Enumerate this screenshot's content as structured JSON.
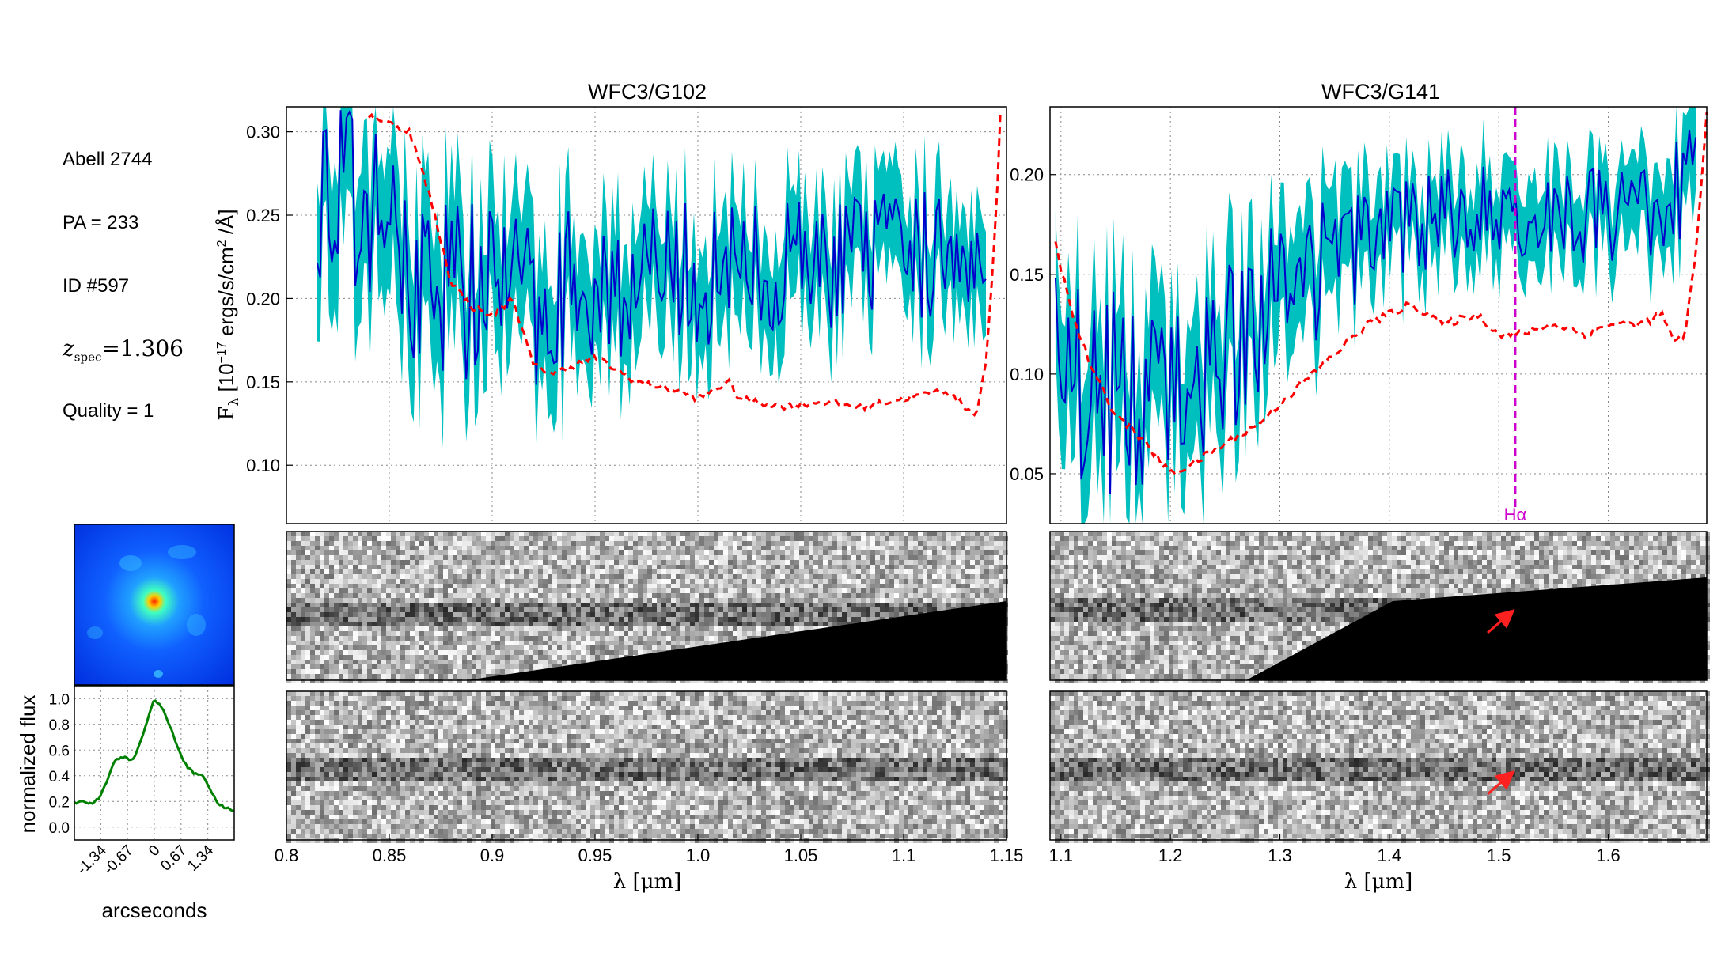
{
  "info": {
    "cluster": "Abell 2744",
    "pa": "PA = 233",
    "id": "ID #597",
    "z_symbol": "z",
    "z_sub": "spec",
    "z_value": "=1.306",
    "quality": "Quality = 1"
  },
  "chart_data": [
    {
      "type": "line",
      "title": "WFC3/G102",
      "xlabel": "λ [μm]",
      "ylabel": "F_λ [10^-17 ergs/s/cm^2 /Å]",
      "xlim": [
        0.8,
        1.15
      ],
      "ylim": [
        0.065,
        0.315
      ],
      "x_ticks": [
        "0.8",
        "0.85",
        "0.9",
        "0.95",
        "1.0",
        "1.05",
        "1.1",
        "1.15"
      ],
      "y_ticks": [
        "0.10",
        "0.15",
        "0.20",
        "0.25",
        "0.30"
      ],
      "grid": true,
      "series": [
        {
          "role": "flux",
          "color": "#0000cc",
          "x": [
            0.815,
            0.84,
            0.86,
            0.88,
            0.9,
            0.92,
            0.95,
            0.98,
            1.0,
            1.02,
            1.05,
            1.08,
            1.1,
            1.12,
            1.14
          ],
          "y": [
            0.27,
            0.25,
            0.22,
            0.21,
            0.205,
            0.2,
            0.21,
            0.21,
            0.215,
            0.215,
            0.22,
            0.225,
            0.225,
            0.23,
            0.235
          ]
        },
        {
          "role": "error-band",
          "color": "#00bfbf",
          "x": [
            0.815,
            0.86,
            0.9,
            0.95,
            1.0,
            1.05,
            1.1,
            1.14
          ],
          "y_low": [
            0.2,
            0.17,
            0.16,
            0.16,
            0.175,
            0.185,
            0.19,
            0.195
          ],
          "y_high": [
            0.31,
            0.28,
            0.26,
            0.25,
            0.255,
            0.26,
            0.26,
            0.27
          ]
        },
        {
          "role": "contamination",
          "color": "#ff0000",
          "x": [
            0.84,
            0.86,
            0.87,
            0.88,
            0.89,
            0.9,
            0.91,
            0.92,
            0.93,
            0.95,
            0.97,
            0.99,
            1.0,
            1.015,
            1.02,
            1.04,
            1.06,
            1.08,
            1.1,
            1.12,
            1.125,
            1.135,
            1.14,
            1.145,
            1.147
          ],
          "y": [
            0.31,
            0.3,
            0.26,
            0.21,
            0.195,
            0.19,
            0.2,
            0.16,
            0.155,
            0.165,
            0.15,
            0.145,
            0.14,
            0.15,
            0.14,
            0.135,
            0.138,
            0.135,
            0.14,
            0.145,
            0.14,
            0.13,
            0.16,
            0.25,
            0.31
          ]
        }
      ]
    },
    {
      "type": "line",
      "title": "WFC3/G141",
      "xlabel": "λ [μm]",
      "xlim": [
        1.09,
        1.69
      ],
      "ylim": [
        0.025,
        0.234
      ],
      "x_ticks": [
        "1.1",
        "1.2",
        "1.3",
        "1.4",
        "1.5",
        "1.6"
      ],
      "y_ticks": [
        "0.05",
        "0.10",
        "0.15",
        "0.20"
      ],
      "grid": true,
      "annotations": [
        {
          "label": "Hα",
          "x": 1.515,
          "color": "#cc00cc"
        }
      ],
      "series": [
        {
          "role": "flux",
          "color": "#0000cc",
          "x": [
            1.095,
            1.15,
            1.2,
            1.25,
            1.3,
            1.35,
            1.4,
            1.45,
            1.5,
            1.55,
            1.6,
            1.65,
            1.68
          ],
          "y": [
            0.1,
            0.09,
            0.085,
            0.11,
            0.14,
            0.155,
            0.17,
            0.18,
            0.185,
            0.18,
            0.18,
            0.18,
            0.2
          ]
        },
        {
          "role": "error-band",
          "color": "#00bfbf",
          "x": [
            1.095,
            1.15,
            1.2,
            1.25,
            1.3,
            1.35,
            1.4,
            1.45,
            1.5,
            1.55,
            1.6,
            1.65,
            1.68
          ],
          "y_low": [
            0.05,
            0.04,
            0.045,
            0.07,
            0.1,
            0.125,
            0.15,
            0.16,
            0.165,
            0.16,
            0.16,
            0.16,
            0.17
          ],
          "y_high": [
            0.14,
            0.14,
            0.12,
            0.15,
            0.17,
            0.185,
            0.195,
            0.205,
            0.21,
            0.205,
            0.205,
            0.205,
            0.23
          ]
        },
        {
          "role": "contamination",
          "color": "#ff0000",
          "x": [
            1.095,
            1.11,
            1.13,
            1.15,
            1.17,
            1.2,
            1.22,
            1.25,
            1.28,
            1.3,
            1.33,
            1.36,
            1.38,
            1.4,
            1.42,
            1.45,
            1.48,
            1.5,
            1.52,
            1.55,
            1.58,
            1.6,
            1.63,
            1.65,
            1.66,
            1.67,
            1.68,
            1.69
          ],
          "y": [
            0.165,
            0.13,
            0.1,
            0.08,
            0.07,
            0.05,
            0.055,
            0.065,
            0.075,
            0.085,
            0.1,
            0.115,
            0.125,
            0.13,
            0.135,
            0.125,
            0.13,
            0.12,
            0.12,
            0.125,
            0.12,
            0.125,
            0.125,
            0.13,
            0.115,
            0.12,
            0.16,
            0.23
          ]
        }
      ]
    },
    {
      "type": "line",
      "xlabel": "arcseconds",
      "ylabel": "normalized flux",
      "xlim": [
        -2.0,
        2.0
      ],
      "ylim": [
        -0.1,
        1.1
      ],
      "x_ticks": [
        "-1.34",
        "-0.67",
        "0",
        "0.67",
        "1.34"
      ],
      "y_ticks": [
        "0.0",
        "0.2",
        "0.4",
        "0.6",
        "0.8",
        "1.0"
      ],
      "grid": true,
      "series": [
        {
          "role": "profile",
          "color": "#008000",
          "x": [
            -2.0,
            -1.8,
            -1.6,
            -1.4,
            -1.2,
            -1.0,
            -0.8,
            -0.6,
            -0.5,
            -0.4,
            -0.2,
            0.0,
            0.2,
            0.4,
            0.6,
            0.8,
            1.0,
            1.2,
            1.4,
            1.6,
            1.8,
            2.0
          ],
          "y": [
            0.18,
            0.2,
            0.18,
            0.22,
            0.35,
            0.52,
            0.55,
            0.52,
            0.55,
            0.62,
            0.8,
            1.0,
            0.92,
            0.78,
            0.6,
            0.48,
            0.42,
            0.4,
            0.3,
            0.18,
            0.15,
            0.12
          ]
        }
      ]
    }
  ]
}
